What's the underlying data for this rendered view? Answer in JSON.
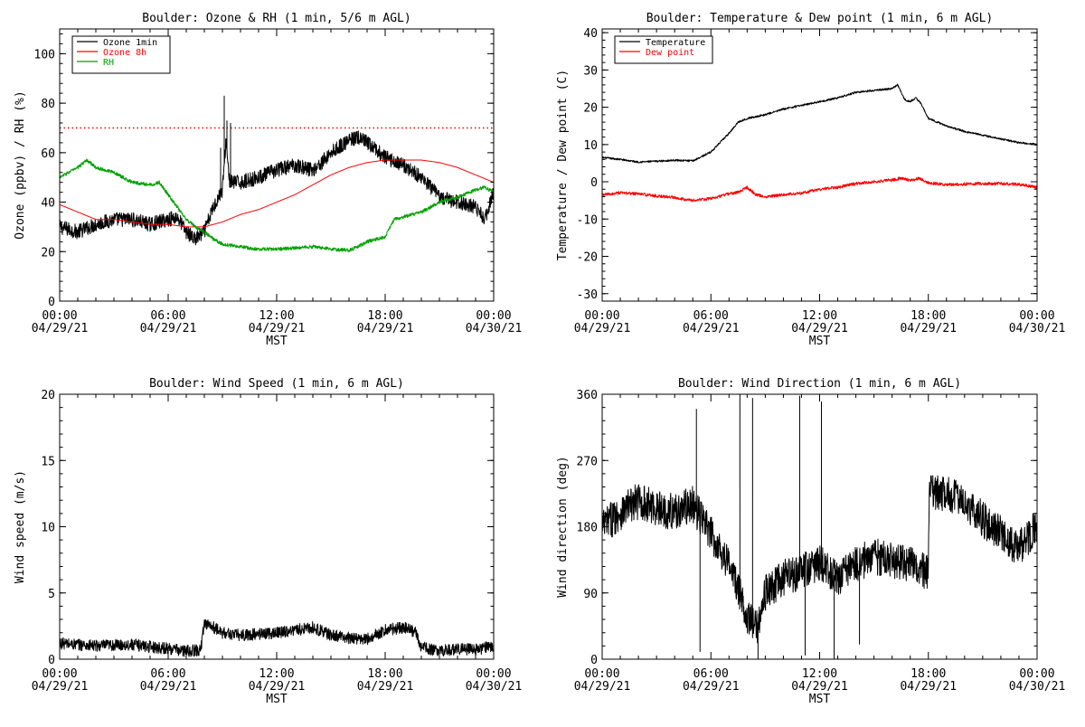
{
  "chart_data": [
    {
      "id": "ozone_rh",
      "type": "line",
      "title": "Boulder: Ozone & RH (1 min, 5/6 m AGL)",
      "xlabel": "MST",
      "ylabel": "Ozone (ppbv) / RH (%)",
      "xlim": [
        0,
        24
      ],
      "ylim": [
        0,
        110
      ],
      "yticks": [
        0,
        20,
        40,
        60,
        80,
        100
      ],
      "x_ticks": [
        {
          "hour": 0,
          "time": "00:00",
          "date": "04/29/21"
        },
        {
          "hour": 6,
          "time": "06:00",
          "date": "04/29/21"
        },
        {
          "hour": 12,
          "time": "12:00",
          "date": "04/29/21"
        },
        {
          "hour": 18,
          "time": "18:00",
          "date": "04/29/21"
        },
        {
          "hour": 24,
          "time": "00:00",
          "date": "04/30/21"
        }
      ],
      "legend_position": "top-left",
      "reference_line": {
        "value": 70,
        "color": "#ff0000",
        "style": "dotted"
      },
      "series": [
        {
          "name": "Ozone 1min",
          "color": "#000000",
          "noise": 3,
          "points": [
            [
              0,
              30
            ],
            [
              1,
              28
            ],
            [
              2,
              31
            ],
            [
              3,
              33
            ],
            [
              4,
              33
            ],
            [
              5,
              31
            ],
            [
              6,
              33
            ],
            [
              6.5,
              34
            ],
            [
              7,
              28
            ],
            [
              7.5,
              25
            ],
            [
              8,
              28
            ],
            [
              8.5,
              38
            ],
            [
              9,
              45
            ],
            [
              9.2,
              65
            ],
            [
              9.4,
              48
            ],
            [
              10,
              48
            ],
            [
              11,
              50
            ],
            [
              12,
              53
            ],
            [
              13,
              55
            ],
            [
              14,
              53
            ],
            [
              14.5,
              56
            ],
            [
              15,
              60
            ],
            [
              16,
              65
            ],
            [
              16.5,
              66
            ],
            [
              17,
              64
            ],
            [
              18,
              58
            ],
            [
              19,
              55
            ],
            [
              20,
              50
            ],
            [
              21,
              42
            ],
            [
              22,
              40
            ],
            [
              23,
              38
            ],
            [
              23.5,
              33
            ],
            [
              24,
              44
            ]
          ],
          "spikes": [
            [
              9.1,
              83
            ],
            [
              9.25,
              73
            ],
            [
              9.45,
              72
            ],
            [
              8.9,
              62
            ]
          ]
        },
        {
          "name": "Ozone 8h",
          "color": "#ff0000",
          "noise": 0,
          "points": [
            [
              0,
              39
            ],
            [
              1,
              36
            ],
            [
              2,
              33
            ],
            [
              3,
              33
            ],
            [
              4,
              32
            ],
            [
              5,
              31
            ],
            [
              6,
              31
            ],
            [
              7,
              30
            ],
            [
              8,
              30
            ],
            [
              9,
              32
            ],
            [
              10,
              35
            ],
            [
              11,
              37
            ],
            [
              12,
              40
            ],
            [
              13,
              43
            ],
            [
              14,
              47
            ],
            [
              15,
              51
            ],
            [
              16,
              54
            ],
            [
              17,
              56
            ],
            [
              18,
              57
            ],
            [
              19,
              57
            ],
            [
              20,
              57
            ],
            [
              21,
              56
            ],
            [
              22,
              54
            ],
            [
              23,
              51
            ],
            [
              24,
              48
            ]
          ]
        },
        {
          "name": "RH",
          "color": "#00a000",
          "noise": 0.7,
          "points": [
            [
              0,
              50
            ],
            [
              1,
              54
            ],
            [
              1.5,
              57
            ],
            [
              2,
              54
            ],
            [
              3,
              52
            ],
            [
              4,
              48
            ],
            [
              5,
              47
            ],
            [
              5.5,
              48
            ],
            [
              6,
              43
            ],
            [
              6.5,
              38
            ],
            [
              7,
              33
            ],
            [
              7.5,
              30
            ],
            [
              8,
              28
            ],
            [
              8.5,
              25
            ],
            [
              9,
              23
            ],
            [
              10,
              22
            ],
            [
              11,
              21
            ],
            [
              12,
              21
            ],
            [
              13,
              21.5
            ],
            [
              14,
              22
            ],
            [
              15,
              21
            ],
            [
              16,
              20.5
            ],
            [
              16.5,
              22
            ],
            [
              17,
              24
            ],
            [
              18,
              26
            ],
            [
              18.5,
              33
            ],
            [
              19,
              34
            ],
            [
              20,
              36
            ],
            [
              21,
              40
            ],
            [
              22,
              42
            ],
            [
              23,
              45
            ],
            [
              23.5,
              46
            ],
            [
              24,
              44
            ]
          ]
        }
      ]
    },
    {
      "id": "temp_dew",
      "type": "line",
      "title": "Boulder: Temperature & Dew point (1 min, 6 m AGL)",
      "xlabel": "MST",
      "ylabel": "Temperature / Dew point (C)",
      "xlim": [
        0,
        24
      ],
      "ylim": [
        -32,
        41
      ],
      "yticks": [
        -30,
        -20,
        -10,
        0,
        10,
        20,
        30,
        40
      ],
      "x_ticks": [
        {
          "hour": 0,
          "time": "00:00",
          "date": "04/29/21"
        },
        {
          "hour": 6,
          "time": "06:00",
          "date": "04/29/21"
        },
        {
          "hour": 12,
          "time": "12:00",
          "date": "04/29/21"
        },
        {
          "hour": 18,
          "time": "18:00",
          "date": "04/29/21"
        },
        {
          "hour": 24,
          "time": "00:00",
          "date": "04/30/21"
        }
      ],
      "legend_position": "top-left",
      "series": [
        {
          "name": "Temperature",
          "color": "#000000",
          "noise": 0.25,
          "points": [
            [
              0,
              6.5
            ],
            [
              1,
              6
            ],
            [
              2,
              5.3
            ],
            [
              3,
              5.5
            ],
            [
              4,
              5.8
            ],
            [
              5,
              5.6
            ],
            [
              6,
              8
            ],
            [
              6.5,
              10.5
            ],
            [
              7,
              13
            ],
            [
              7.5,
              16
            ],
            [
              8,
              17
            ],
            [
              9,
              18
            ],
            [
              10,
              19.5
            ],
            [
              11,
              20.5
            ],
            [
              12,
              21.5
            ],
            [
              13,
              22.5
            ],
            [
              14,
              24
            ],
            [
              15,
              24.5
            ],
            [
              16,
              25
            ],
            [
              16.3,
              26
            ],
            [
              16.7,
              22
            ],
            [
              17,
              21.5
            ],
            [
              17.3,
              22.5
            ],
            [
              17.6,
              21
            ],
            [
              18,
              17
            ],
            [
              19,
              15
            ],
            [
              20,
              13.5
            ],
            [
              21,
              12.5
            ],
            [
              22,
              11.5
            ],
            [
              23,
              10.5
            ],
            [
              24,
              10
            ]
          ]
        },
        {
          "name": "Dew point",
          "color": "#ff0000",
          "noise": 0.4,
          "points": [
            [
              0,
              -3.5
            ],
            [
              1,
              -3
            ],
            [
              2,
              -3.2
            ],
            [
              3,
              -3.8
            ],
            [
              4,
              -4.2
            ],
            [
              5,
              -5
            ],
            [
              6,
              -4.5
            ],
            [
              7,
              -3.2
            ],
            [
              7.5,
              -2.8
            ],
            [
              8,
              -1.5
            ],
            [
              8.5,
              -3.5
            ],
            [
              9,
              -4
            ],
            [
              10,
              -3.5
            ],
            [
              11,
              -3
            ],
            [
              12,
              -2
            ],
            [
              13,
              -1.5
            ],
            [
              14,
              -0.5
            ],
            [
              15,
              0
            ],
            [
              16,
              0.5
            ],
            [
              16.5,
              1
            ],
            [
              17,
              0.3
            ],
            [
              17.5,
              1
            ],
            [
              18,
              -0.3
            ],
            [
              19,
              -0.8
            ],
            [
              20,
              -0.6
            ],
            [
              21,
              -0.5
            ],
            [
              22,
              -0.5
            ],
            [
              23,
              -0.7
            ],
            [
              24,
              -1.5
            ]
          ]
        }
      ]
    },
    {
      "id": "wind_speed",
      "type": "line",
      "title": "Boulder: Wind Speed (1 min, 6 m AGL)",
      "xlabel": "MST",
      "ylabel": "Wind speed (m/s)",
      "xlim": [
        0,
        24
      ],
      "ylim": [
        0,
        20
      ],
      "yticks": [
        0,
        5,
        10,
        15,
        20
      ],
      "x_ticks": [
        {
          "hour": 0,
          "time": "00:00",
          "date": "04/29/21"
        },
        {
          "hour": 6,
          "time": "06:00",
          "date": "04/29/21"
        },
        {
          "hour": 12,
          "time": "12:00",
          "date": "04/29/21"
        },
        {
          "hour": 18,
          "time": "18:00",
          "date": "04/29/21"
        },
        {
          "hour": 24,
          "time": "00:00",
          "date": "04/30/21"
        }
      ],
      "series": [
        {
          "name": "",
          "color": "#000000",
          "noise": 0.45,
          "points": [
            [
              0,
              1.2
            ],
            [
              2,
              1
            ],
            [
              4,
              1.1
            ],
            [
              6,
              0.8
            ],
            [
              7,
              0.6
            ],
            [
              7.8,
              0.7
            ],
            [
              8,
              2.8
            ],
            [
              9,
              2
            ],
            [
              10,
              1.8
            ],
            [
              12,
              2
            ],
            [
              13,
              2.2
            ],
            [
              14,
              2.4
            ],
            [
              15,
              1.8
            ],
            [
              16,
              1.6
            ],
            [
              17,
              1.5
            ],
            [
              18,
              2.2
            ],
            [
              19,
              2.4
            ],
            [
              19.7,
              2
            ],
            [
              20,
              0.9
            ],
            [
              21,
              0.6
            ],
            [
              22,
              0.8
            ],
            [
              23,
              0.7
            ],
            [
              24,
              1
            ]
          ]
        }
      ]
    },
    {
      "id": "wind_dir",
      "type": "line",
      "title": "Boulder: Wind Direction (1 min, 6 m AGL)",
      "xlabel": "MST",
      "ylabel": "Wind direction (deg)",
      "xlim": [
        0,
        24
      ],
      "ylim": [
        0,
        360
      ],
      "yticks": [
        0,
        90,
        180,
        270,
        360
      ],
      "x_ticks": [
        {
          "hour": 0,
          "time": "00:00",
          "date": "04/29/21"
        },
        {
          "hour": 6,
          "time": "06:00",
          "date": "04/29/21"
        },
        {
          "hour": 12,
          "time": "12:00",
          "date": "04/29/21"
        },
        {
          "hour": 18,
          "time": "18:00",
          "date": "04/29/21"
        },
        {
          "hour": 24,
          "time": "00:00",
          "date": "04/30/21"
        }
      ],
      "series": [
        {
          "name": "",
          "color": "#000000",
          "noise": 25,
          "points": [
            [
              0,
              180
            ],
            [
              1,
              200
            ],
            [
              2,
              215
            ],
            [
              3,
              205
            ],
            [
              4,
              200
            ],
            [
              5,
              210
            ],
            [
              6,
              170
            ],
            [
              7,
              130
            ],
            [
              8,
              60
            ],
            [
              8.5,
              40
            ],
            [
              9,
              90
            ],
            [
              10,
              110
            ],
            [
              11,
              120
            ],
            [
              12,
              130
            ],
            [
              13,
              110
            ],
            [
              14,
              130
            ],
            [
              15,
              140
            ],
            [
              16,
              135
            ],
            [
              17,
              130
            ],
            [
              18,
              115
            ],
            [
              18.05,
              225
            ],
            [
              19,
              225
            ],
            [
              20,
              215
            ],
            [
              21,
              190
            ],
            [
              22,
              170
            ],
            [
              23,
              150
            ],
            [
              24,
              180
            ]
          ],
          "spikes": [
            [
              5.2,
              340
            ],
            [
              5.4,
              10
            ],
            [
              7.6,
              360
            ],
            [
              8.3,
              355
            ],
            [
              8.6,
              0
            ],
            [
              10.9,
              358
            ],
            [
              11.2,
              5
            ],
            [
              12.1,
              350
            ],
            [
              12.8,
              0
            ],
            [
              14.2,
              20
            ]
          ]
        }
      ]
    }
  ]
}
